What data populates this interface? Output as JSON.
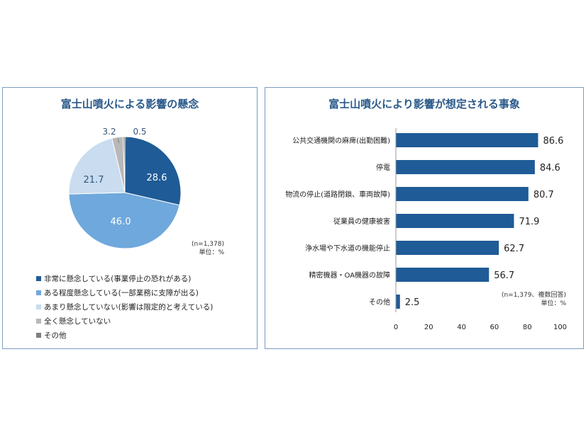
{
  "colors": {
    "panel_border": "#7a9cc0",
    "title": "#2a5a8a",
    "bar": "#1f5b96"
  },
  "charts": {
    "left": {
      "title": "富士山噴火による影響の懸念",
      "note_n": "(n=1,378)",
      "note_unit": "単位：%"
    },
    "right": {
      "title": "富士山噴火により影響が想定される事象",
      "note_n": "(n=1,379、複数回答)",
      "note_unit": "単位：%"
    }
  },
  "chart_data": [
    {
      "type": "pie",
      "title": "富士山噴火による影響の懸念",
      "slices": [
        {
          "label": "非常に懸念している(事業停止の恐れがある)",
          "value": 28.6,
          "color": "#1f5b96"
        },
        {
          "label": "ある程度懸念している(一部業務に支障が出る)",
          "value": 46.0,
          "color": "#6fa8dc"
        },
        {
          "label": "あまり懸念していない(影響は限定的と考えている)",
          "value": 21.7,
          "color": "#c9dcf0"
        },
        {
          "label": "全く懸念していない",
          "value": 3.2,
          "color": "#b8b8b8"
        },
        {
          "label": "その他",
          "value": 0.5,
          "color": "#7f7f7f"
        }
      ],
      "legend_position": "bottom"
    },
    {
      "type": "bar",
      "orientation": "horizontal",
      "title": "富士山噴火により影響が想定される事象",
      "categories": [
        "公共交通機関の麻痺(出勤困難)",
        "停電",
        "物流の停止(道路閉鎖、車両故障)",
        "従業員の健康被害",
        "浄水場や下水道の機能停止",
        "精密機器・OA機器の故障",
        "その他"
      ],
      "values": [
        86.6,
        84.6,
        80.7,
        71.9,
        62.7,
        56.7,
        2.5
      ],
      "xlim": [
        0,
        100
      ],
      "xticks": [
        0,
        20,
        40,
        60,
        80,
        100
      ],
      "grid": false
    }
  ]
}
